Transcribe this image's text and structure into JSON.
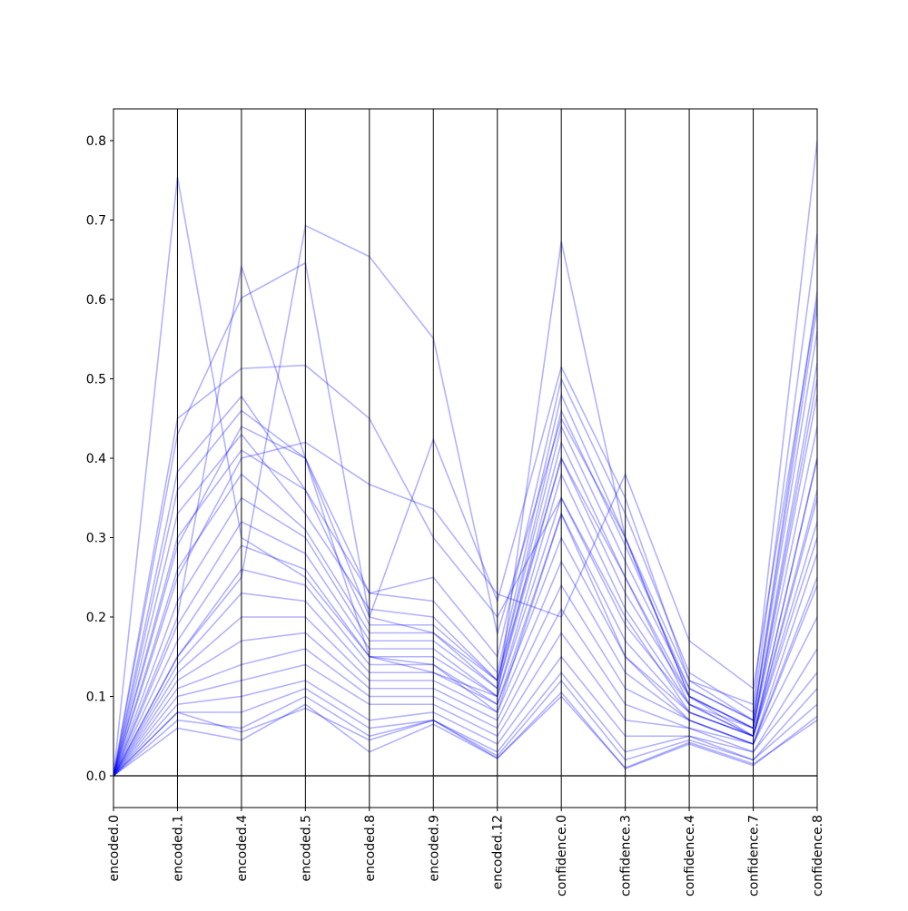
{
  "chart_data": {
    "type": "line",
    "subtype": "parallel-coordinates",
    "title": "",
    "xlabel": "",
    "ylabel": "",
    "categories": [
      "encoded.0",
      "encoded.1",
      "encoded.4",
      "encoded.5",
      "encoded.8",
      "encoded.9",
      "encoded.12",
      "confidence.0",
      "confidence.3",
      "confidence.4",
      "confidence.7",
      "confidence.8"
    ],
    "ylim": [
      -0.04,
      0.84
    ],
    "yticks": [
      0.0,
      0.1,
      0.2,
      0.3,
      0.4,
      0.5,
      0.6,
      0.7,
      0.8
    ],
    "ytick_labels": [
      "0.0",
      "0.1",
      "0.2",
      "0.3",
      "0.4",
      "0.5",
      "0.6",
      "0.7",
      "0.8"
    ],
    "grid": false,
    "legend": "none",
    "line_color": "#0000ff",
    "line_alpha": 0.3,
    "reference_line": {
      "y": 0.0,
      "color": "#000000"
    },
    "series": [
      {
        "values": [
          0.0,
          0.754,
          0.3,
          0.25,
          0.15,
          0.14,
          0.08,
          0.33,
          0.15,
          0.07,
          0.04,
          0.25
        ]
      },
      {
        "values": [
          0.0,
          0.45,
          0.513,
          0.517,
          0.45,
          0.3,
          0.2,
          0.35,
          0.2,
          0.08,
          0.05,
          0.3
        ]
      },
      {
        "values": [
          0.0,
          0.43,
          0.602,
          0.646,
          0.2,
          0.18,
          0.12,
          0.4,
          0.25,
          0.09,
          0.05,
          0.4
        ]
      },
      {
        "values": [
          0.0,
          0.15,
          0.25,
          0.693,
          0.654,
          0.551,
          0.179,
          0.45,
          0.3,
          0.1,
          0.06,
          0.5
        ]
      },
      {
        "values": [
          0.0,
          0.2,
          0.642,
          0.4,
          0.15,
          0.13,
          0.1,
          0.673,
          0.3,
          0.1,
          0.05,
          0.35
        ]
      },
      {
        "values": [
          0.0,
          0.25,
          0.4,
          0.42,
          0.367,
          0.336,
          0.229,
          0.2,
          0.38,
          0.17,
          0.11,
          0.6
        ]
      },
      {
        "values": [
          0.0,
          0.29,
          0.44,
          0.4,
          0.2,
          0.424,
          0.22,
          0.515,
          0.35,
          0.12,
          0.09,
          0.8
        ]
      },
      {
        "values": [
          0.0,
          0.383,
          0.478,
          0.36,
          0.23,
          0.25,
          0.15,
          0.5,
          0.33,
          0.13,
          0.08,
          0.683
        ]
      },
      {
        "values": [
          0.0,
          0.36,
          0.46,
          0.4,
          0.23,
          0.22,
          0.13,
          0.48,
          0.3,
          0.12,
          0.07,
          0.61
        ]
      },
      {
        "values": [
          0.0,
          0.33,
          0.43,
          0.33,
          0.21,
          0.2,
          0.12,
          0.46,
          0.29,
          0.11,
          0.07,
          0.59
        ]
      },
      {
        "values": [
          0.0,
          0.3,
          0.41,
          0.36,
          0.19,
          0.19,
          0.12,
          0.44,
          0.27,
          0.11,
          0.07,
          0.56
        ]
      },
      {
        "values": [
          0.0,
          0.26,
          0.38,
          0.31,
          0.18,
          0.18,
          0.11,
          0.42,
          0.25,
          0.1,
          0.06,
          0.52
        ]
      },
      {
        "values": [
          0.0,
          0.22,
          0.35,
          0.3,
          0.17,
          0.17,
          0.11,
          0.4,
          0.23,
          0.1,
          0.06,
          0.48
        ]
      },
      {
        "values": [
          0.0,
          0.19,
          0.32,
          0.28,
          0.16,
          0.16,
          0.1,
          0.38,
          0.21,
          0.09,
          0.06,
          0.44
        ]
      },
      {
        "values": [
          0.0,
          0.17,
          0.29,
          0.26,
          0.15,
          0.15,
          0.1,
          0.35,
          0.19,
          0.09,
          0.05,
          0.4
        ]
      },
      {
        "values": [
          0.0,
          0.15,
          0.26,
          0.24,
          0.14,
          0.14,
          0.09,
          0.33,
          0.17,
          0.08,
          0.05,
          0.36
        ]
      },
      {
        "values": [
          0.0,
          0.14,
          0.23,
          0.22,
          0.13,
          0.13,
          0.09,
          0.3,
          0.15,
          0.08,
          0.05,
          0.32
        ]
      },
      {
        "values": [
          0.0,
          0.13,
          0.2,
          0.2,
          0.12,
          0.12,
          0.08,
          0.27,
          0.13,
          0.07,
          0.04,
          0.28
        ]
      },
      {
        "values": [
          0.0,
          0.12,
          0.17,
          0.18,
          0.11,
          0.11,
          0.07,
          0.24,
          0.11,
          0.07,
          0.04,
          0.24
        ]
      },
      {
        "values": [
          0.0,
          0.11,
          0.14,
          0.16,
          0.1,
          0.1,
          0.06,
          0.21,
          0.09,
          0.06,
          0.04,
          0.2
        ]
      },
      {
        "values": [
          0.0,
          0.1,
          0.12,
          0.14,
          0.09,
          0.09,
          0.05,
          0.18,
          0.07,
          0.06,
          0.03,
          0.16
        ]
      },
      {
        "values": [
          0.0,
          0.09,
          0.1,
          0.12,
          0.07,
          0.08,
          0.04,
          0.15,
          0.05,
          0.05,
          0.03,
          0.13
        ]
      },
      {
        "values": [
          0.0,
          0.08,
          0.08,
          0.11,
          0.06,
          0.07,
          0.03,
          0.13,
          0.03,
          0.05,
          0.02,
          0.11
        ]
      },
      {
        "values": [
          0.0,
          0.07,
          0.06,
          0.1,
          0.05,
          0.07,
          0.025,
          0.12,
          0.02,
          0.045,
          0.02,
          0.09
        ]
      },
      {
        "values": [
          0.0,
          0.06,
          0.045,
          0.09,
          0.03,
          0.065,
          0.022,
          0.1,
          0.01,
          0.042,
          0.015,
          0.07
        ]
      },
      {
        "values": [
          0.0,
          0.08,
          0.055,
          0.085,
          0.045,
          0.07,
          0.022,
          0.105,
          0.009,
          0.04,
          0.013,
          0.075
        ]
      }
    ]
  }
}
